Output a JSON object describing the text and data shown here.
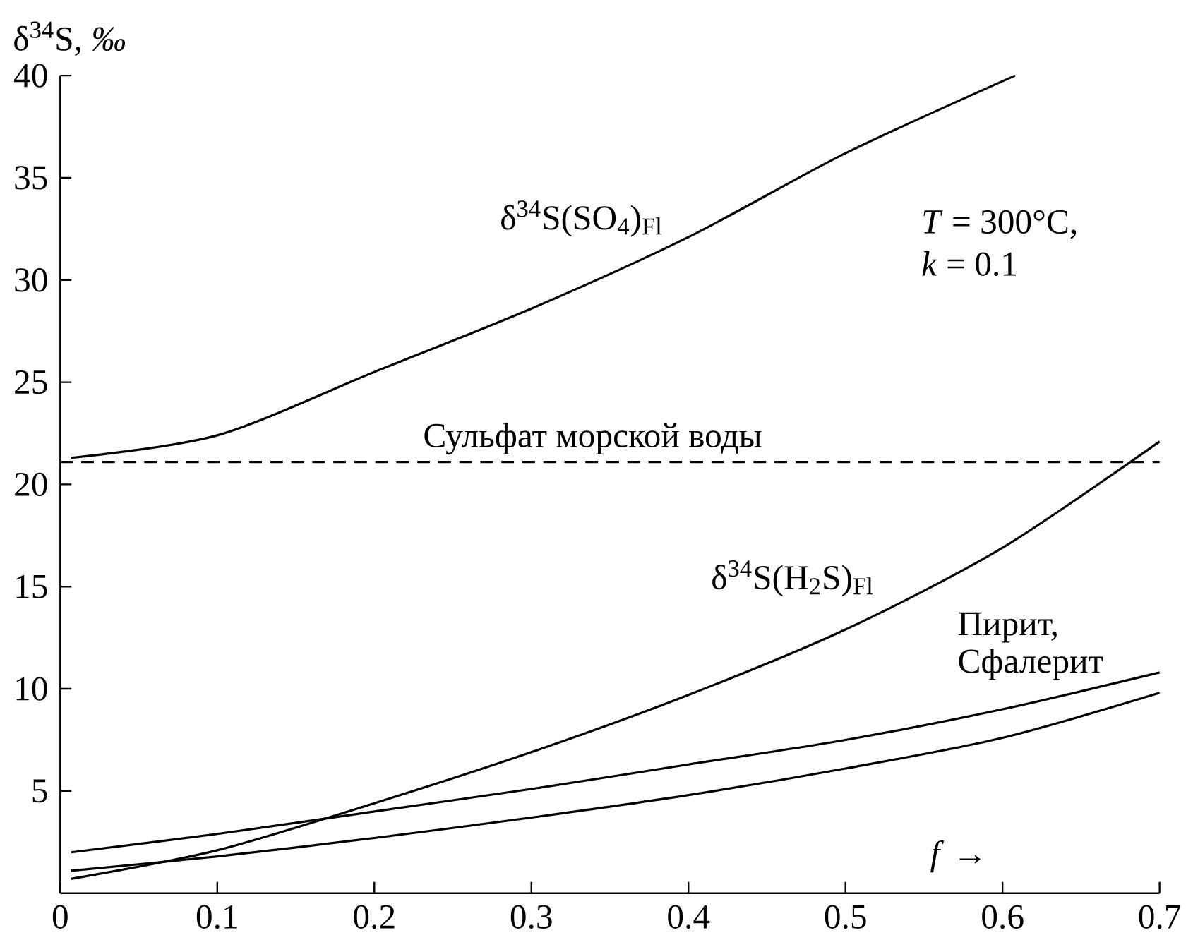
{
  "chart_data": {
    "type": "line",
    "ylabel": "δ$^{34}$S, *‰*",
    "xlim": [
      0,
      0.7
    ],
    "ylim": [
      0,
      40
    ],
    "xticks": [
      0,
      0.1,
      0.2,
      0.3,
      0.4,
      0.5,
      0.6,
      0.7
    ],
    "yticks": [
      5,
      10,
      15,
      20,
      25,
      30,
      35,
      40
    ],
    "marker": "none",
    "line_style": "solid",
    "series": [
      {
        "color": "#000000",
        "x": [
          0.007,
          0.1,
          0.2,
          0.3,
          0.4,
          0.5,
          0.608
        ],
        "values": [
          21.3,
          22.4,
          25.5,
          28.6,
          32.1,
          36.2,
          40
        ]
      },
      {
        "color": "#000000",
        "x": [
          0.007,
          0.1,
          0.2,
          0.3,
          0.4,
          0.5,
          0.6,
          0.7
        ],
        "values": [
          0.7,
          2.1,
          4.4,
          6.9,
          9.7,
          12.9,
          16.9,
          22.1
        ]
      },
      {
        "color": "#000000",
        "x": [
          0.007,
          0.1,
          0.2,
          0.3,
          0.4,
          0.5,
          0.6,
          0.7
        ],
        "values": [
          2.0,
          2.9,
          4.0,
          5.1,
          6.3,
          7.5,
          9.0,
          10.8
        ]
      },
      {
        "color": "#000000",
        "x": [
          0.007,
          0.1,
          0.2,
          0.3,
          0.4,
          0.5,
          0.6,
          0.7
        ],
        "values": [
          1.1,
          1.8,
          2.7,
          3.7,
          4.8,
          6.1,
          7.6,
          9.8
        ]
      }
    ],
    "ref_lines": [
      {
        "axis": "y",
        "value": 21.1,
        "label": "Сульфат морской воды",
        "line_style": "dashed",
        "color": "#000000"
      }
    ],
    "annotations": [
      "δ$^{34}$S(SO$_{4}$)$_{Fl}$",
      "δ$^{34}$S(H$_{2}$S)$_{Fl}$",
      "Пирит,",
      "Сфалерит",
      "*T* = 300°C,",
      "*k* = 0.1",
      "*f* →"
    ]
  }
}
